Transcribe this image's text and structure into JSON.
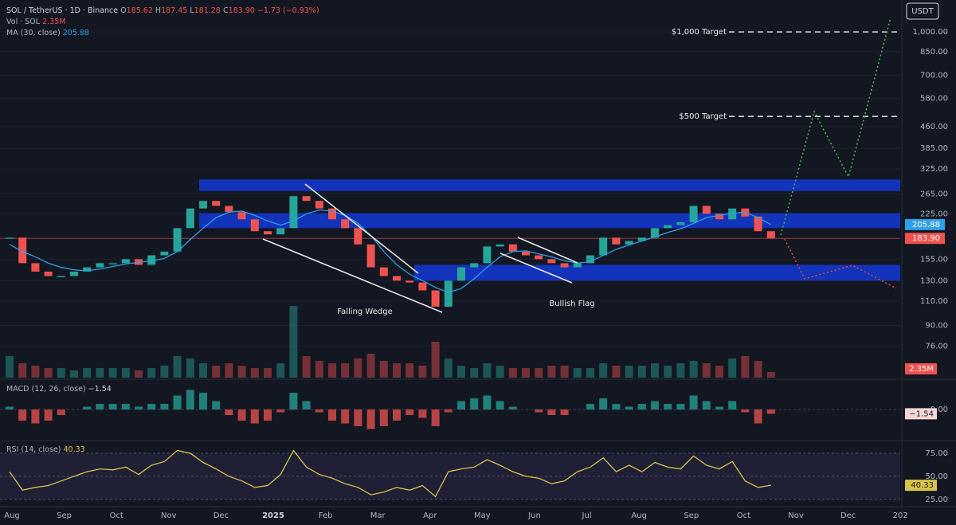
{
  "chart_data": [
    {
      "type": "candlestick",
      "title": "SOL / TetherUS · 1D · Binance",
      "quote": [
        {
          "key": "O",
          "value": "185.62"
        },
        {
          "key": "H",
          "value": "187.45"
        },
        {
          "key": "L",
          "value": "181.28"
        },
        {
          "key": "C",
          "value": "183.90"
        }
      ],
      "change": "−1.73 (−0.93%)",
      "currency": "USDT",
      "log_scale": true,
      "ylim": [
        58.3,
        1299
      ],
      "yticks": [
        {
          "value": 1000,
          "label": "1,000.00"
        },
        {
          "value": 850,
          "label": "850.00"
        },
        {
          "value": 700,
          "label": "700.00"
        },
        {
          "value": 580,
          "label": "580.00"
        },
        {
          "value": 460,
          "label": "460.00"
        },
        {
          "value": 385,
          "label": "385.00"
        },
        {
          "value": 325,
          "label": "325.00"
        },
        {
          "value": 265,
          "label": "265.00"
        },
        {
          "value": 225,
          "label": "225.00"
        },
        {
          "value": 155,
          "label": "155.00"
        },
        {
          "value": 130,
          "label": "130.00"
        },
        {
          "value": 110,
          "label": "110.00"
        },
        {
          "value": 90,
          "label": "90.00"
        },
        {
          "value": 76,
          "label": "76.00"
        }
      ],
      "series": [
        {
          "up_color": "#26a69a",
          "down_color": "#ef5350",
          "values": [
            185,
            150,
            140,
            135,
            135,
            140,
            145,
            150,
            150,
            155,
            148,
            160,
            165,
            200,
            235,
            250,
            240,
            228,
            215,
            195,
            190,
            200,
            260,
            250,
            235,
            215,
            200,
            175,
            145,
            135,
            130,
            128,
            120,
            105,
            130,
            145,
            150,
            172,
            175,
            165,
            160,
            155,
            150,
            145,
            150,
            160,
            185,
            175,
            180,
            185,
            200,
            205,
            210,
            240,
            225,
            215,
            235,
            220,
            195,
            183.9
          ],
          "value_label": "183.90"
        },
        {
          "name": "MA (30, close)",
          "color": "#2f9fe8",
          "values": [
            175,
            165,
            158,
            150,
            145,
            142,
            141,
            143,
            146,
            149,
            151,
            153,
            156,
            165,
            182,
            200,
            218,
            228,
            230,
            222,
            212,
            205,
            212,
            225,
            232,
            230,
            222,
            208,
            188,
            165,
            148,
            137,
            130,
            123,
            118,
            122,
            132,
            145,
            158,
            165,
            166,
            162,
            158,
            153,
            150,
            152,
            160,
            168,
            174,
            180,
            186,
            193,
            199,
            208,
            218,
            222,
            226,
            228,
            218,
            205.88
          ],
          "value_label": "205.88"
        }
      ],
      "volume": {
        "name": "Vol · SOL",
        "ylim": [
          0,
          40
        ],
        "values": [
          9,
          6,
          5,
          4,
          4,
          3,
          4,
          4,
          4,
          4,
          3,
          4,
          5,
          9,
          8,
          6,
          5,
          6,
          5,
          4,
          4,
          6,
          30,
          9,
          7,
          6,
          6,
          8,
          10,
          7,
          6,
          6,
          5,
          15,
          8,
          5,
          4,
          6,
          5,
          4,
          4,
          4,
          5,
          5,
          4,
          4,
          6,
          5,
          5,
          5,
          6,
          5,
          6,
          7,
          6,
          5,
          8,
          9,
          7,
          2.35
        ],
        "value_label": "2.35M"
      },
      "zones": [
        {
          "low": 271,
          "high": 298
        },
        {
          "low": 200,
          "high": 226
        },
        {
          "low": 130,
          "high": 148
        }
      ],
      "targets": [
        {
          "label": "$1,000 Target",
          "value": 1000
        },
        {
          "label": "$500 Target",
          "value": 500
        }
      ],
      "annotations": [
        "Falling Wedge",
        "Bullish Flag"
      ],
      "x_axis_labels": [
        "Aug",
        "Sep",
        "Oct",
        "Nov",
        "Dec",
        "2025",
        "Feb",
        "Mar",
        "Apr",
        "May",
        "Jun",
        "Jul",
        "Aug",
        "Sep",
        "Oct",
        "Nov",
        "Dec",
        "202"
      ]
    },
    {
      "type": "histogram",
      "title": "MACD (12, 26, close)",
      "ylim": [
        -10,
        10
      ],
      "yticks": [
        {
          "value": 0,
          "label": "0.00"
        }
      ],
      "values": [
        1,
        -4,
        -5,
        -4,
        -2,
        0,
        1,
        2,
        2,
        2,
        1,
        2,
        2,
        5,
        7,
        6,
        3,
        -2,
        -4,
        -5,
        -4,
        -1,
        6,
        3,
        -1,
        -4,
        -5,
        -6,
        -7,
        -6,
        -4,
        -2,
        -3,
        -6,
        -1,
        3,
        4,
        5,
        3,
        1,
        0,
        -1,
        -2,
        -2,
        0,
        2,
        4,
        2,
        1,
        2,
        3,
        2,
        2,
        5,
        3,
        1,
        3,
        -1,
        -5,
        -1.54
      ],
      "value_label": "−1.54"
    },
    {
      "type": "line",
      "title": "RSI (14, close)",
      "color": "#d8c24a",
      "ylim": [
        18,
        87
      ],
      "yticks": [
        {
          "value": 75,
          "label": "75.00"
        },
        {
          "value": 50,
          "label": "50.00"
        },
        {
          "value": 25,
          "label": "25.00"
        }
      ],
      "values": [
        55,
        35,
        38,
        40,
        45,
        50,
        55,
        58,
        57,
        60,
        52,
        62,
        66,
        78,
        75,
        65,
        58,
        50,
        45,
        38,
        40,
        52,
        78,
        60,
        52,
        48,
        42,
        38,
        30,
        33,
        38,
        35,
        40,
        28,
        55,
        58,
        60,
        68,
        62,
        55,
        50,
        48,
        42,
        45,
        55,
        60,
        70,
        55,
        62,
        55,
        65,
        60,
        58,
        72,
        62,
        58,
        66,
        45,
        38,
        40.33
      ],
      "value_label": "40.33"
    }
  ]
}
